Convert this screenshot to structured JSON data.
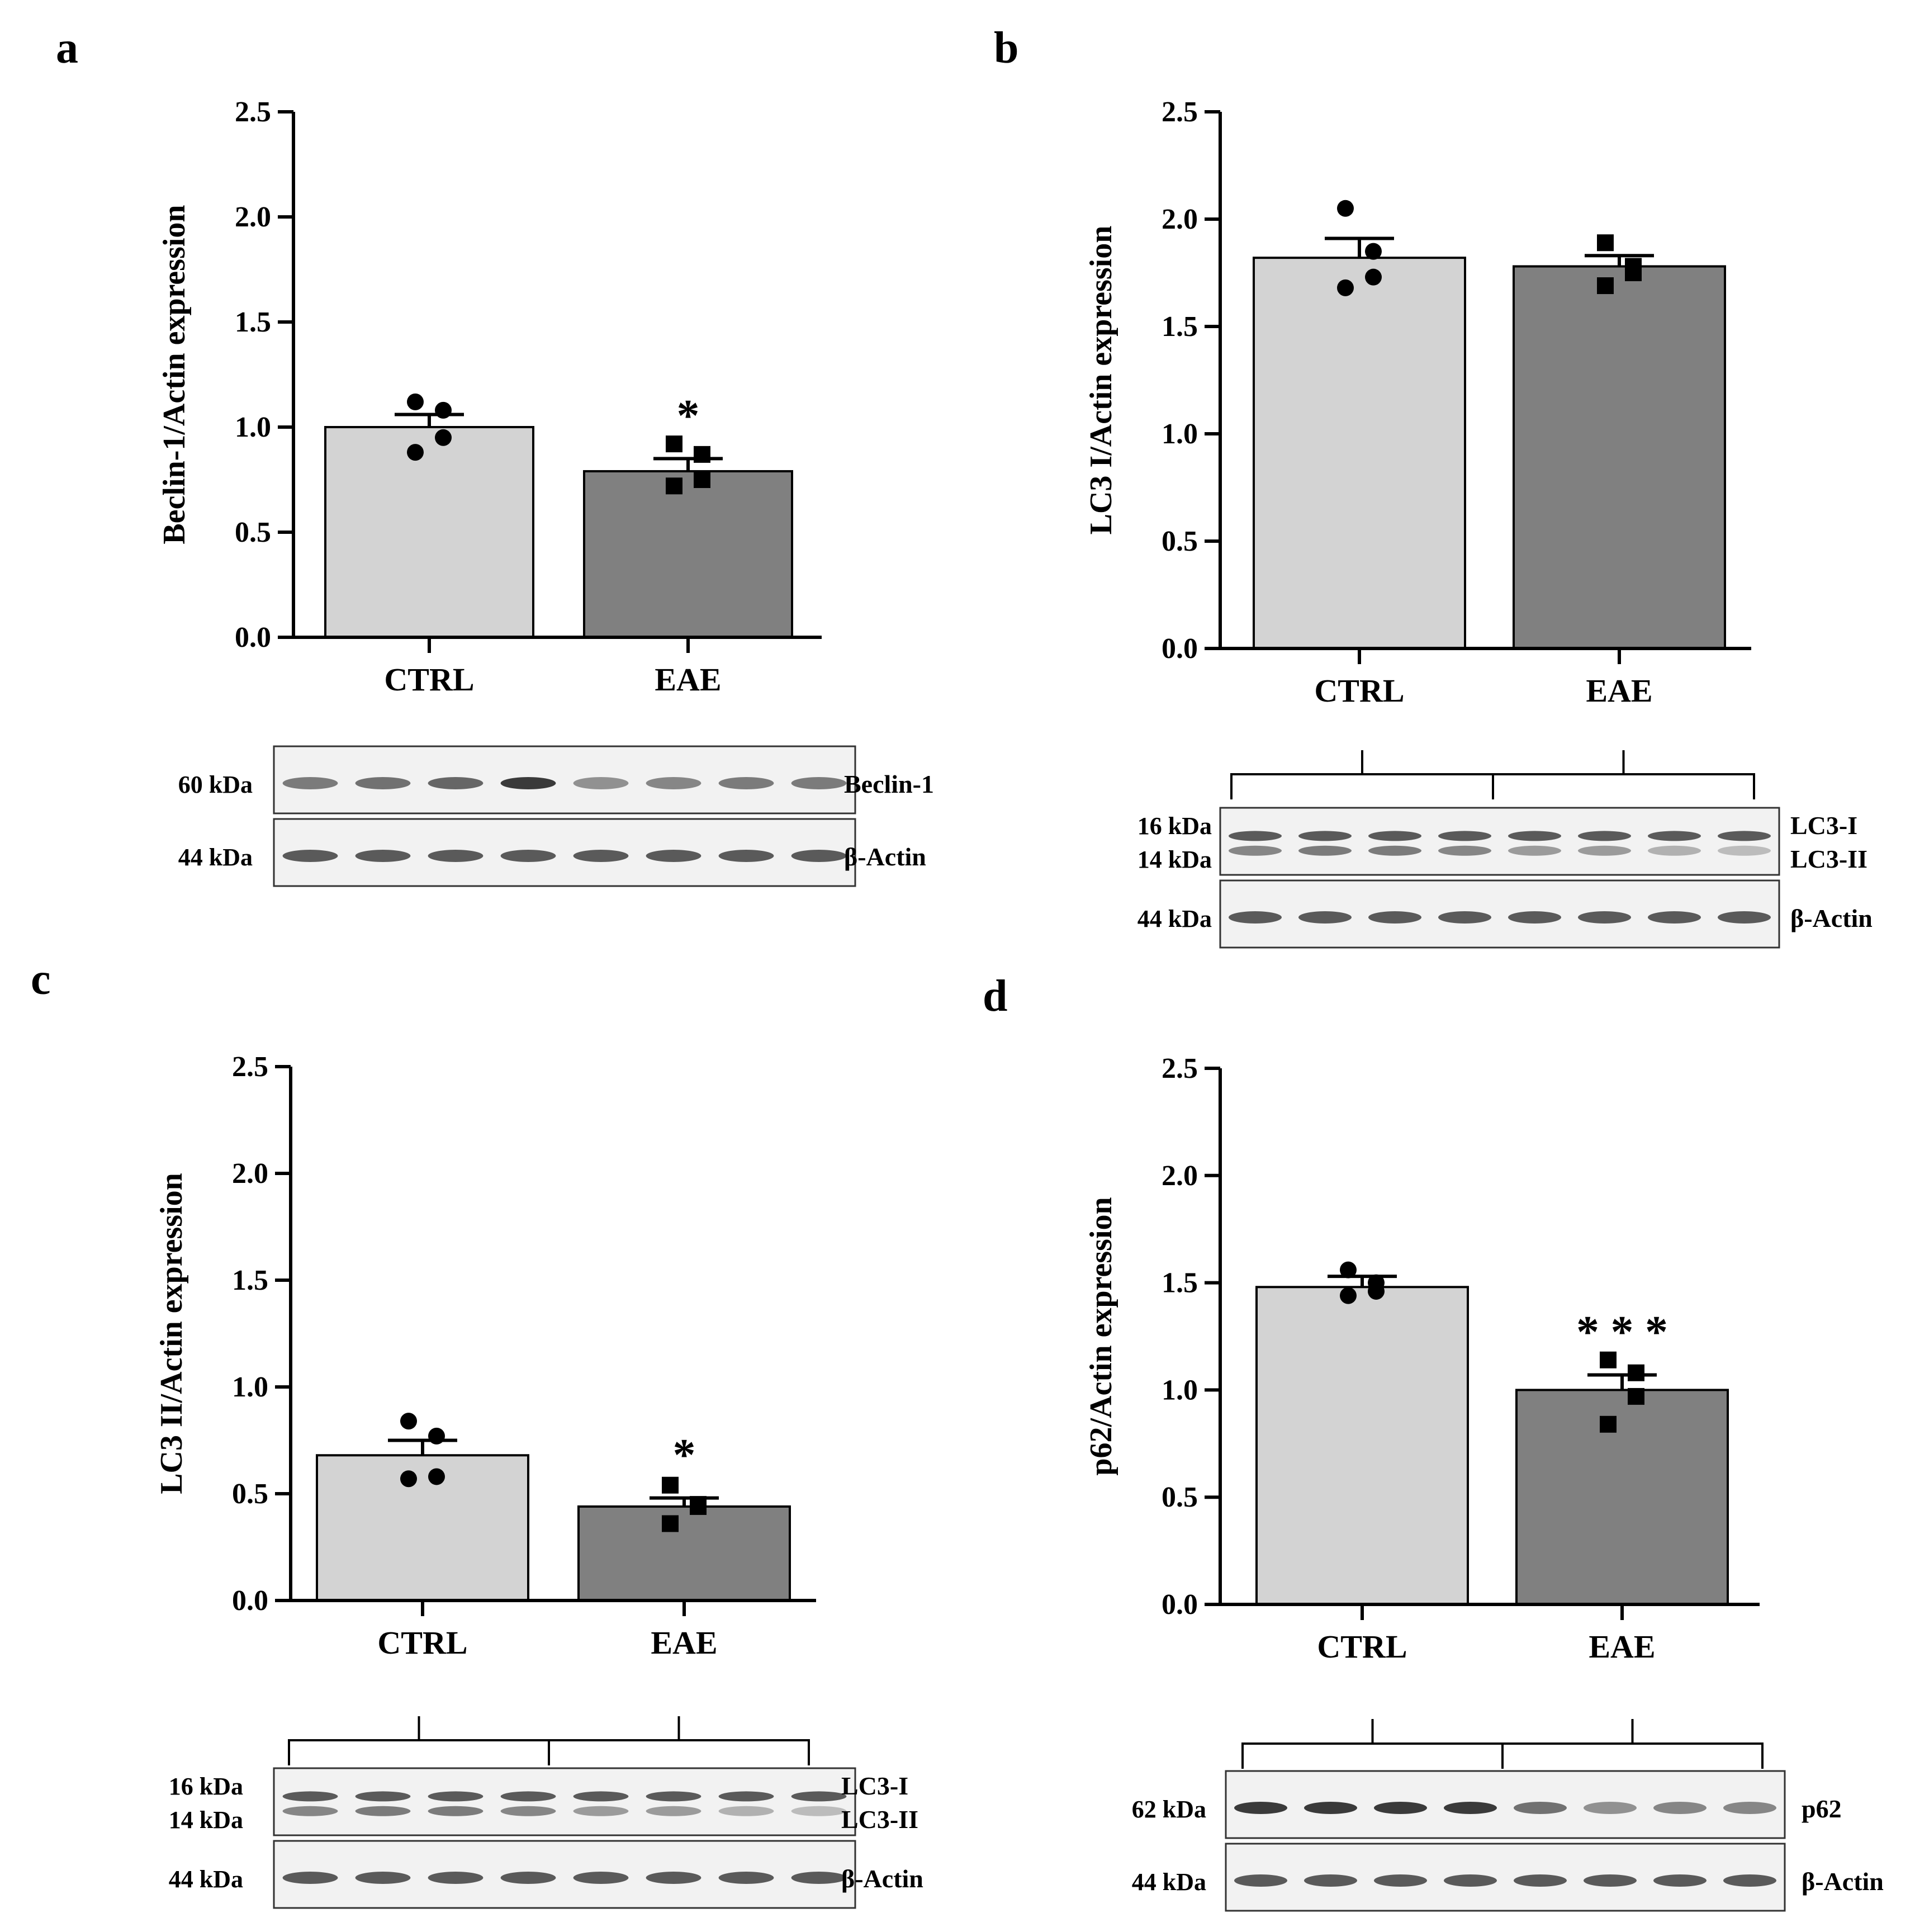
{
  "colors": {
    "ctrl_bar": "#d3d3d3",
    "eae_bar": "#808080",
    "axis": "#000000",
    "band": "#1a1a1a",
    "blot_bg": "#f2f2f2"
  },
  "chart_data": [
    {
      "panel": "a",
      "type": "bar",
      "ylabel": "Beclin-1/Actin expression",
      "ylim": [
        0,
        2.5
      ],
      "yticks": [
        "0.0",
        "0.5",
        "1.0",
        "1.5",
        "2.0",
        "2.5"
      ],
      "categories": [
        "CTRL",
        "EAE"
      ],
      "values": [
        1.0,
        0.79
      ],
      "sem": [
        0.06,
        0.06
      ],
      "points": [
        [
          1.12,
          1.08,
          0.95,
          0.88
        ],
        [
          0.92,
          0.87,
          0.75,
          0.72
        ]
      ],
      "significance": [
        "",
        "*"
      ],
      "blot": {
        "rows": [
          {
            "kda": [
              "60 kDa"
            ],
            "labels": [
              "Beclin-1"
            ],
            "bands": [
              [
                0.55,
                0.6,
                0.65,
                0.85,
                0.45,
                0.5,
                0.55,
                0.55
              ]
            ]
          },
          {
            "kda": [
              "44 kDa"
            ],
            "labels": [
              "β-Actin"
            ],
            "bands": [
              [
                0.7,
                0.7,
                0.7,
                0.7,
                0.7,
                0.7,
                0.7,
                0.7
              ]
            ]
          }
        ]
      }
    },
    {
      "panel": "b",
      "type": "bar",
      "ylabel": "LC3 I/Actin expression",
      "ylim": [
        0,
        2.5
      ],
      "yticks": [
        "0.0",
        "0.5",
        "1.0",
        "1.5",
        "2.0",
        "2.5"
      ],
      "categories": [
        "CTRL",
        "EAE"
      ],
      "values": [
        1.82,
        1.78
      ],
      "sem": [
        0.09,
        0.05
      ],
      "points": [
        [
          2.05,
          1.85,
          1.73,
          1.68
        ],
        [
          1.89,
          1.78,
          1.75,
          1.69
        ]
      ],
      "significance": [
        "",
        ""
      ],
      "blot": {
        "rows": [
          {
            "kda": [
              "16 kDa",
              "14 kDa"
            ],
            "labels": [
              "LC3-I",
              "LC3-II"
            ],
            "bands": [
              [
                0.7,
                0.7,
                0.7,
                0.7,
                0.7,
                0.7,
                0.7,
                0.7
              ],
              [
                0.5,
                0.55,
                0.55,
                0.5,
                0.4,
                0.4,
                0.3,
                0.25
              ]
            ]
          },
          {
            "kda": [
              "44 kDa"
            ],
            "labels": [
              "β-Actin"
            ],
            "bands": [
              [
                0.7,
                0.7,
                0.7,
                0.7,
                0.7,
                0.7,
                0.7,
                0.7
              ]
            ]
          }
        ]
      }
    },
    {
      "panel": "c",
      "type": "bar",
      "ylabel": "LC3 II/Actin expression",
      "ylim": [
        0,
        2.5
      ],
      "yticks": [
        "0.0",
        "0.5",
        "1.0",
        "1.5",
        "2.0",
        "2.5"
      ],
      "categories": [
        "CTRL",
        "EAE"
      ],
      "values": [
        0.68,
        0.44
      ],
      "sem": [
        0.07,
        0.04
      ],
      "points": [
        [
          0.84,
          0.77,
          0.58,
          0.57
        ],
        [
          0.54,
          0.45,
          0.44,
          0.36
        ]
      ],
      "significance": [
        "",
        "*"
      ],
      "blot": {
        "rows": [
          {
            "kda": [
              "16 kDa",
              "14 kDa"
            ],
            "labels": [
              "LC3-I",
              "LC3-II"
            ],
            "bands": [
              [
                0.7,
                0.7,
                0.7,
                0.7,
                0.7,
                0.7,
                0.7,
                0.7
              ],
              [
                0.5,
                0.55,
                0.55,
                0.5,
                0.4,
                0.4,
                0.3,
                0.25
              ]
            ]
          },
          {
            "kda": [
              "44 kDa"
            ],
            "labels": [
              "β-Actin"
            ],
            "bands": [
              [
                0.7,
                0.7,
                0.7,
                0.7,
                0.7,
                0.7,
                0.7,
                0.7
              ]
            ]
          }
        ]
      }
    },
    {
      "panel": "d",
      "type": "bar",
      "ylabel": "p62/Actin expression",
      "ylim": [
        0,
        2.5
      ],
      "yticks": [
        "0.0",
        "0.5",
        "1.0",
        "1.5",
        "2.0",
        "2.5"
      ],
      "categories": [
        "CTRL",
        "EAE"
      ],
      "values": [
        1.48,
        1.0
      ],
      "sem": [
        0.05,
        0.07
      ],
      "points": [
        [
          1.56,
          1.5,
          1.46,
          1.44
        ],
        [
          1.14,
          1.08,
          0.97,
          0.84
        ]
      ],
      "significance": [
        "",
        "* * *"
      ],
      "blot": {
        "rows": [
          {
            "kda": [
              "62 kDa"
            ],
            "labels": [
              "p62"
            ],
            "bands": [
              [
                0.85,
                0.85,
                0.85,
                0.85,
                0.6,
                0.45,
                0.5,
                0.5
              ]
            ]
          },
          {
            "kda": [
              "44 kDa"
            ],
            "labels": [
              "β-Actin"
            ],
            "bands": [
              [
                0.7,
                0.7,
                0.7,
                0.7,
                0.7,
                0.7,
                0.7,
                0.7
              ]
            ]
          }
        ]
      }
    }
  ]
}
